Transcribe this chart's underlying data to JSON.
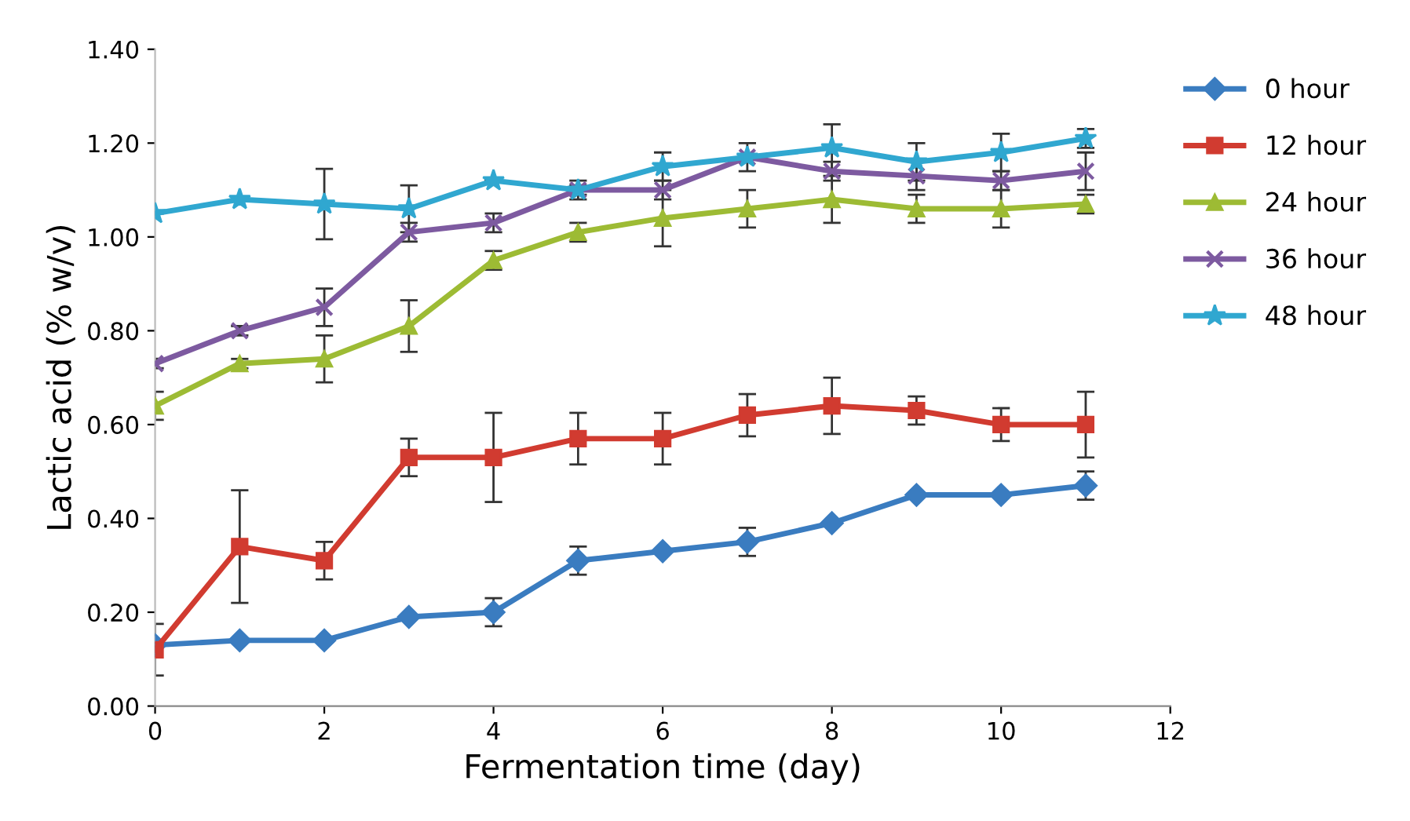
{
  "chart_data": {
    "type": "line",
    "xlabel": "Fermentation time (day)",
    "ylabel": "Lactic acid (% w/v)",
    "x": [
      0,
      1,
      2,
      3,
      4,
      5,
      6,
      7,
      8,
      9,
      10,
      11
    ],
    "xlim": [
      0,
      12
    ],
    "xticks": [
      0,
      2,
      4,
      6,
      8,
      10,
      12
    ],
    "ylim": [
      0,
      1.4
    ],
    "yticks": [
      {
        "value": 0,
        "label": "0.00"
      },
      {
        "value": 0.2,
        "label": "0.20"
      },
      {
        "value": 0.4,
        "label": "0.40"
      },
      {
        "value": 0.6,
        "label": "0.60"
      },
      {
        "value": 0.8,
        "label": "0.80"
      },
      {
        "value": 1.0,
        "label": "1.00"
      },
      {
        "value": 1.2,
        "label": "1.20"
      },
      {
        "value": 1.4,
        "label": "1.40"
      }
    ],
    "grid": false,
    "legend": "right",
    "line_style": "solid",
    "series": [
      {
        "name": "0 hour",
        "color": "#3a7cc0",
        "marker": "diamond",
        "values": [
          0.13,
          0.14,
          0.14,
          0.19,
          0.2,
          0.31,
          0.33,
          0.35,
          0.39,
          0.45,
          0.45,
          0.47
        ],
        "errors": [
          null,
          null,
          null,
          null,
          0.03,
          0.03,
          null,
          0.03,
          null,
          null,
          null,
          0.03
        ]
      },
      {
        "name": "12 hour",
        "color": "#d13b30",
        "marker": "square",
        "values": [
          0.12,
          0.34,
          0.31,
          0.53,
          0.53,
          0.57,
          0.57,
          0.62,
          0.64,
          0.63,
          0.6,
          0.6
        ],
        "errors": [
          0.055,
          0.12,
          0.04,
          0.04,
          0.095,
          0.055,
          0.055,
          0.045,
          0.06,
          0.03,
          0.035,
          0.07
        ]
      },
      {
        "name": "24 hour",
        "color": "#9dbb34",
        "marker": "triangle",
        "values": [
          0.64,
          0.73,
          0.74,
          0.81,
          0.95,
          1.01,
          1.04,
          1.06,
          1.08,
          1.06,
          1.06,
          1.07
        ],
        "errors": [
          0.03,
          0.01,
          0.05,
          0.055,
          0.02,
          0.02,
          0.06,
          0.04,
          0.05,
          0.03,
          0.04,
          0.02
        ]
      },
      {
        "name": "36 hour",
        "color": "#7d5aa0",
        "marker": "cross",
        "values": [
          0.73,
          0.8,
          0.85,
          1.01,
          1.03,
          1.1,
          1.1,
          1.17,
          1.14,
          1.13,
          1.12,
          1.14
        ],
        "errors": [
          0.01,
          0.01,
          0.04,
          0.02,
          0.02,
          0.02,
          0.02,
          null,
          0.02,
          0.03,
          0.02,
          0.04
        ]
      },
      {
        "name": "48 hour",
        "color": "#30a7d0",
        "marker": "star",
        "values": [
          1.05,
          1.08,
          1.07,
          1.06,
          1.12,
          1.1,
          1.15,
          1.17,
          1.19,
          1.16,
          1.18,
          1.21
        ],
        "errors": [
          null,
          null,
          0.075,
          0.05,
          null,
          0.01,
          0.03,
          0.03,
          0.05,
          0.04,
          0.04,
          0.02
        ]
      }
    ]
  }
}
